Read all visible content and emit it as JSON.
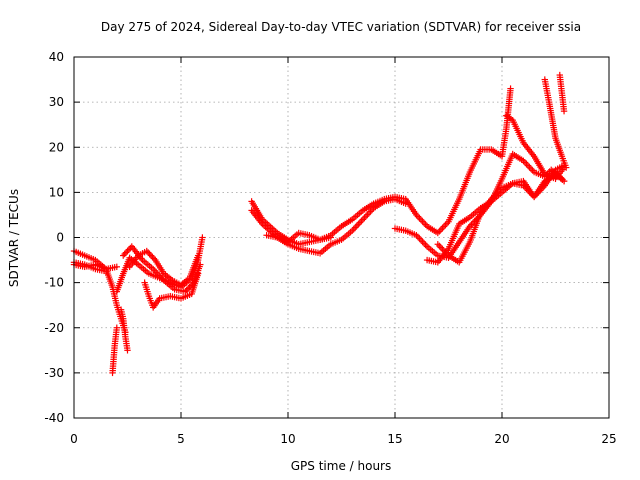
{
  "chart_data": {
    "type": "scatter",
    "title": "Day 275 of 2024, Sidereal Day-to-day VTEC variation (SDTVAR) for receiver ssia",
    "xlabel": "GPS time / hours",
    "ylabel": "SDTVAR / TECUs",
    "xlim": [
      0,
      25
    ],
    "ylim": [
      -40,
      40
    ],
    "xticks": [
      0,
      5,
      10,
      15,
      20,
      25
    ],
    "yticks": [
      -40,
      -30,
      -20,
      -10,
      0,
      10,
      20,
      30,
      40
    ],
    "grid": true,
    "marker": "+",
    "color": "#ff0000",
    "series": [
      {
        "x": [
          0.0,
          0.5,
          1.0,
          1.5,
          1.8,
          2.0,
          2.2,
          2.4
        ],
        "y": [
          -3.0,
          -4.0,
          -5.0,
          -7.0,
          -11.0,
          -15.0,
          -18.0,
          -21.0
        ]
      },
      {
        "x": [
          2.0,
          1.9,
          1.85,
          1.8
        ],
        "y": [
          -20.0,
          -24.0,
          -27.0,
          -30.0
        ]
      },
      {
        "x": [
          2.2,
          2.3,
          2.4,
          2.5
        ],
        "y": [
          -16.0,
          -18.0,
          -22.0,
          -25.0
        ]
      },
      {
        "x": [
          0.0,
          0.5,
          1.0,
          1.5,
          2.0
        ],
        "y": [
          -6.0,
          -6.5,
          -6.0,
          -7.0,
          -6.5
        ]
      },
      {
        "x": [
          0.0,
          0.5,
          1.0,
          1.5
        ],
        "y": [
          -5.5,
          -6.0,
          -7.0,
          -7.5
        ]
      },
      {
        "x": [
          2.0,
          2.3,
          2.6,
          3.0,
          3.5,
          4.0,
          4.5,
          5.0,
          5.5,
          5.8,
          6.0
        ],
        "y": [
          -12.0,
          -8.0,
          -4.5,
          -6.0,
          -8.0,
          -9.0,
          -10.0,
          -11.0,
          -9.0,
          -5.0,
          0.0
        ]
      },
      {
        "x": [
          2.3,
          2.7,
          3.2,
          3.7,
          4.2,
          4.7,
          5.2,
          5.6,
          5.9
        ],
        "y": [
          -4.0,
          -2.0,
          -5.0,
          -7.0,
          -9.5,
          -11.5,
          -12.0,
          -10.0,
          -6.0
        ]
      },
      {
        "x": [
          2.6,
          3.0,
          3.4,
          3.8,
          4.2,
          4.6,
          5.0,
          5.4,
          5.8
        ],
        "y": [
          -6.5,
          -4.0,
          -3.0,
          -5.0,
          -8.0,
          -9.5,
          -10.5,
          -9.0,
          -4.0
        ]
      },
      {
        "x": [
          3.3,
          3.5,
          3.7,
          4.0,
          4.5,
          5.0,
          5.5,
          5.8
        ],
        "y": [
          -10.0,
          -13.0,
          -15.5,
          -13.5,
          -13.0,
          -13.5,
          -12.5,
          -8.0
        ]
      },
      {
        "x": [
          8.3,
          8.8,
          9.5,
          10.0,
          10.5,
          11.0,
          11.5,
          12.0,
          12.5,
          13.0,
          13.5,
          14.0,
          14.5,
          15.0,
          15.5,
          16.0,
          16.5,
          17.0,
          17.5,
          18.0,
          18.5,
          19.0,
          19.5,
          20.0,
          20.2,
          20.4
        ],
        "y": [
          8.0,
          4.0,
          1.0,
          -0.5,
          -1.5,
          -1.0,
          -0.5,
          0.5,
          2.5,
          4.0,
          6.0,
          7.5,
          8.5,
          9.0,
          8.5,
          5.0,
          2.5,
          1.0,
          3.5,
          8.5,
          14.5,
          19.5,
          19.5,
          18.0,
          24.0,
          33.0
        ]
      },
      {
        "x": [
          8.3,
          8.8,
          9.5,
          10.0,
          10.5,
          11.0,
          11.5,
          12.0,
          12.5,
          13.0,
          13.5,
          14.0,
          14.5,
          15.0,
          15.5
        ],
        "y": [
          6.0,
          3.0,
          0.0,
          -1.5,
          -2.5,
          -3.0,
          -3.5,
          -1.5,
          -0.5,
          1.5,
          4.0,
          6.5,
          8.0,
          8.5,
          7.5
        ]
      },
      {
        "x": [
          9.0,
          9.5,
          10.0,
          10.5,
          11.0,
          11.5,
          12.0
        ],
        "y": [
          0.5,
          0.0,
          -1.0,
          1.0,
          0.5,
          -0.5,
          0.0
        ]
      },
      {
        "x": [
          15.0,
          15.5,
          16.0,
          16.5,
          17.0,
          17.5,
          18.0,
          18.5,
          19.0,
          19.5,
          20.0,
          20.5,
          21.0,
          21.5,
          22.0,
          22.3,
          22.6,
          22.9
        ],
        "y": [
          2.0,
          1.5,
          0.5,
          -2.0,
          -4.0,
          -4.5,
          -1.0,
          2.5,
          5.0,
          8.0,
          13.0,
          18.5,
          17.0,
          14.5,
          13.5,
          15.0,
          14.0,
          12.5
        ]
      },
      {
        "x": [
          16.5,
          17.0,
          17.5,
          18.0,
          18.5,
          19.0,
          19.5,
          20.0,
          20.5,
          21.0,
          21.5,
          22.0,
          22.5,
          22.9
        ],
        "y": [
          -5.0,
          -5.5,
          -2.5,
          3.0,
          4.5,
          6.5,
          8.0,
          10.0,
          12.0,
          12.5,
          9.0,
          11.5,
          15.0,
          16.0
        ]
      },
      {
        "x": [
          17.0,
          17.5,
          18.0,
          18.5,
          19.0,
          19.5,
          20.0,
          20.5,
          21.0,
          21.5,
          22.0,
          22.5,
          22.9
        ],
        "y": [
          -1.5,
          -4.0,
          -5.5,
          -1.0,
          5.5,
          8.5,
          11.0,
          12.0,
          11.5,
          9.0,
          12.5,
          14.0,
          12.5
        ]
      },
      {
        "x": [
          20.2,
          20.5,
          21.0,
          21.5,
          22.0,
          22.5,
          22.9
        ],
        "y": [
          27.0,
          26.0,
          21.0,
          18.0,
          14.0,
          13.0,
          15.5
        ]
      },
      {
        "x": [
          22.0,
          22.2,
          22.5,
          22.8,
          23.0
        ],
        "y": [
          35.0,
          30.0,
          22.0,
          18.0,
          15.5
        ]
      },
      {
        "x": [
          22.7,
          22.8,
          22.9
        ],
        "y": [
          36.0,
          32.0,
          28.0
        ]
      }
    ]
  }
}
